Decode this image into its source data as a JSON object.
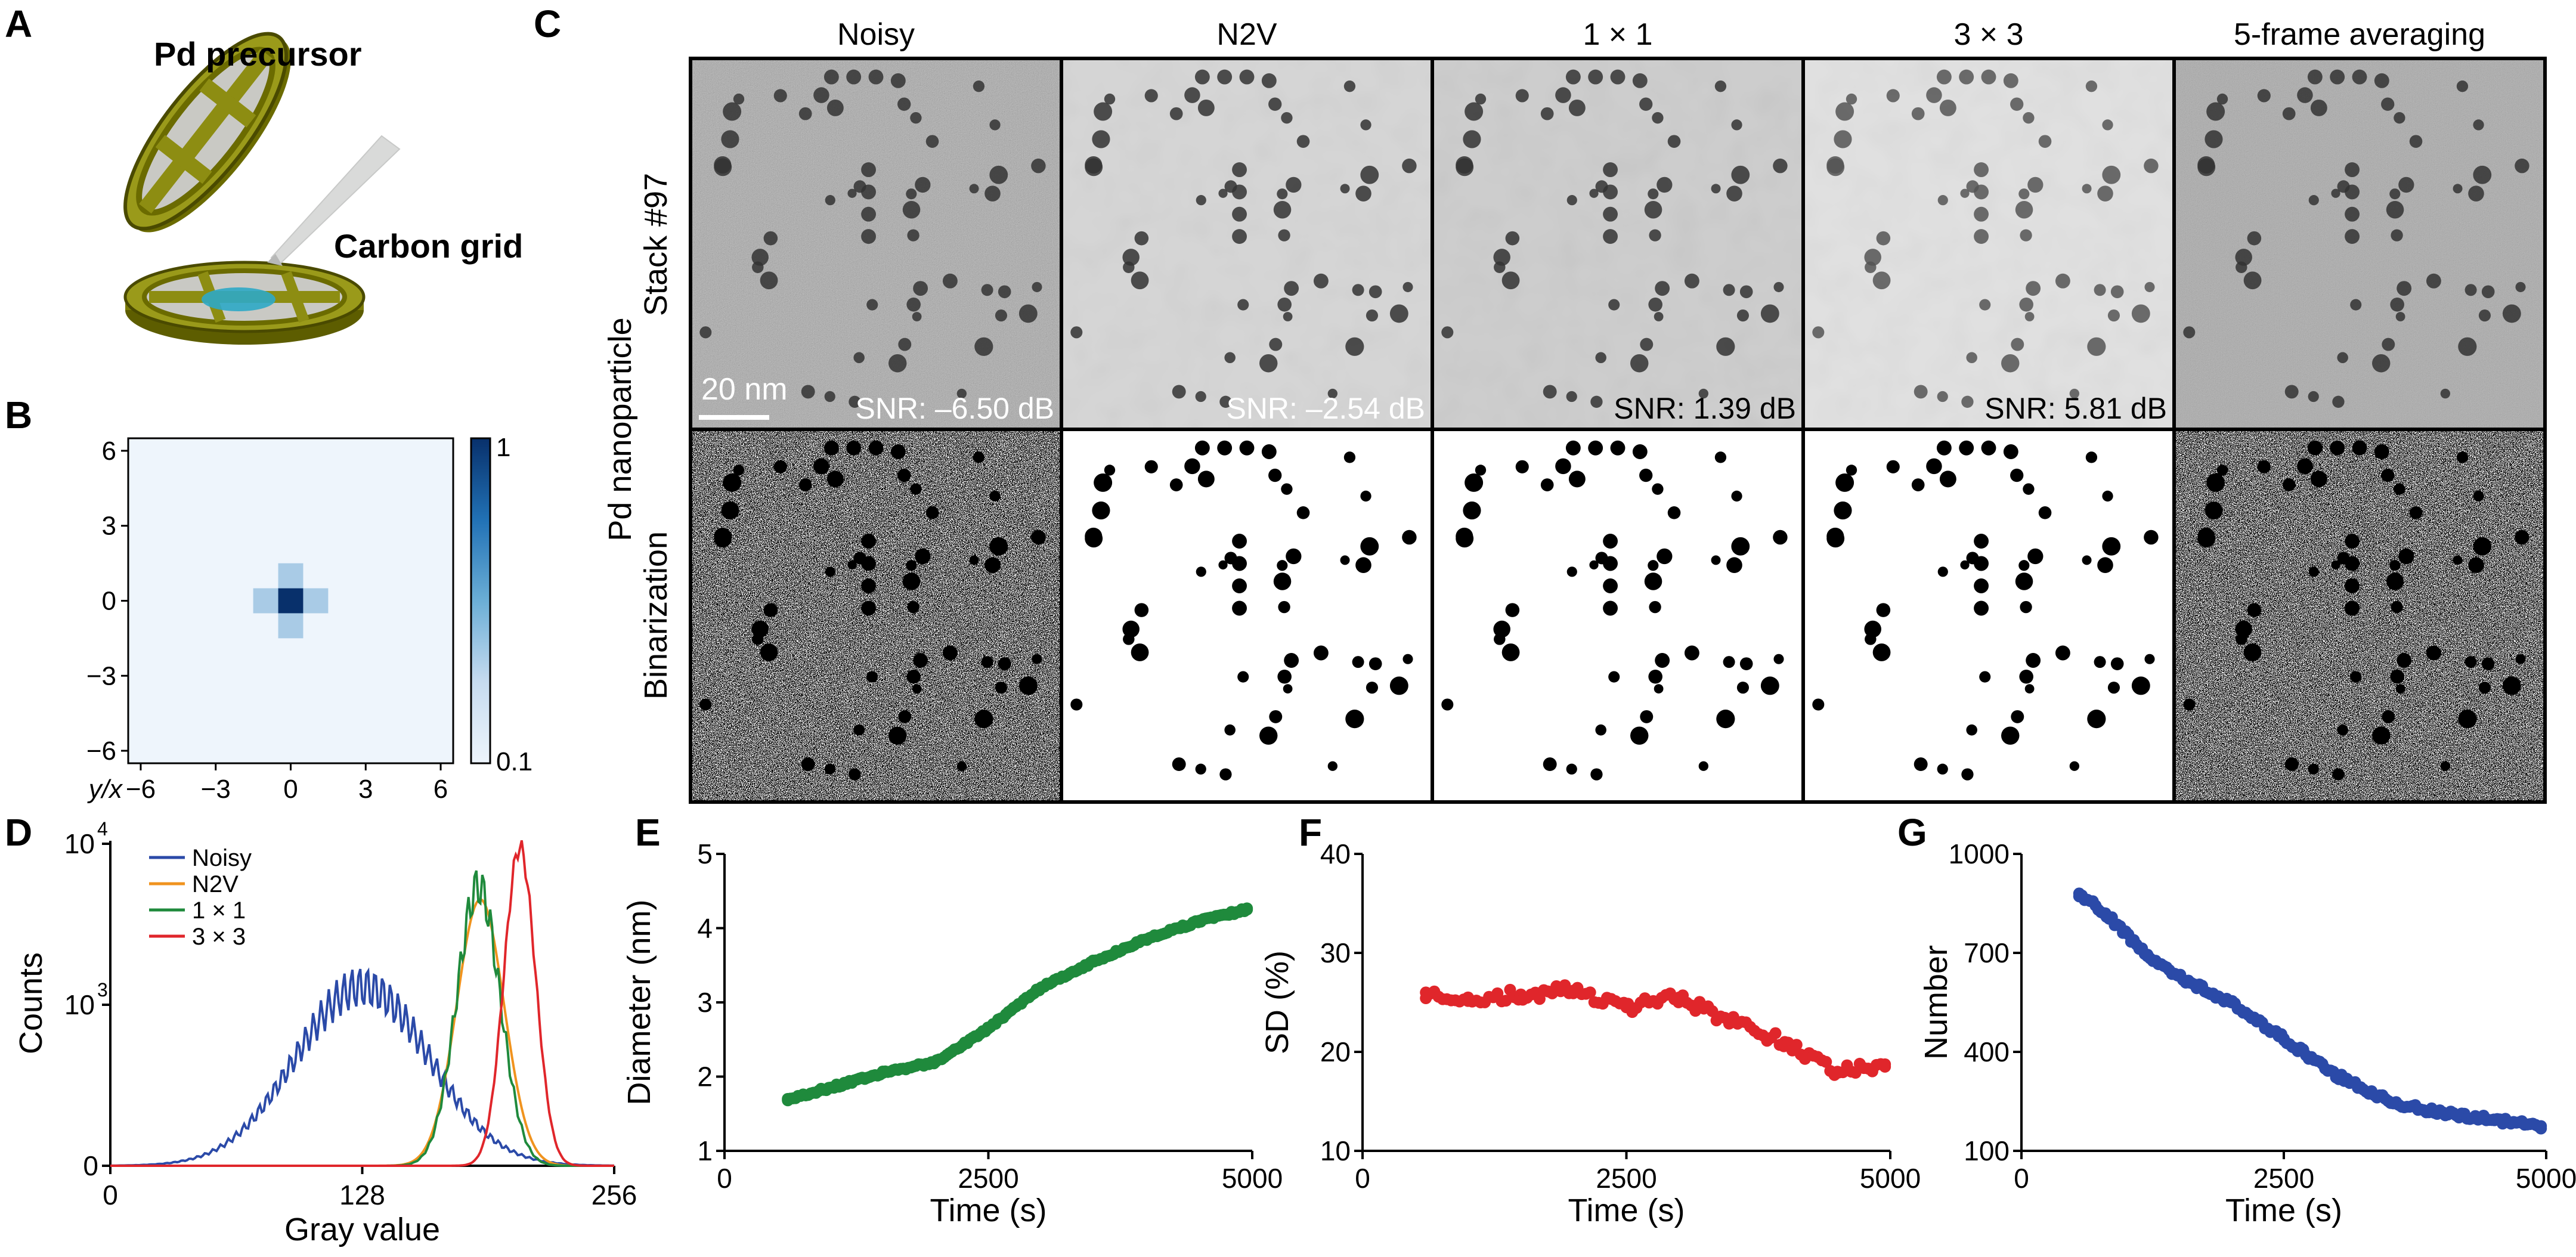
{
  "panels": {
    "A": {
      "label": "A",
      "precursor_label": "Pd precursor",
      "grid_label": "Carbon grid"
    },
    "B": {
      "label": "B"
    },
    "C": {
      "label": "C"
    },
    "D": {
      "label": "D"
    },
    "E": {
      "label": "E"
    },
    "F": {
      "label": "F"
    },
    "G": {
      "label": "G"
    }
  },
  "image_grid": {
    "columns": [
      "Noisy",
      "N2V",
      "1 × 1",
      "3 × 3",
      "5-frame averaging"
    ],
    "snr_labels": [
      "SNR: –6.50 dB",
      "SNR: –2.54 dB",
      "SNR: 1.39 dB",
      "SNR: 5.81 dB",
      ""
    ],
    "row_group_label": "Pd nanoparticle",
    "row_labels": [
      "Stack #97",
      "Binarization"
    ],
    "scale_bar_label": "20 nm"
  },
  "chart_data": [
    {
      "id": "B",
      "type": "heatmap",
      "xlabel": "y/x",
      "xticks": [
        -6,
        -3,
        0,
        3,
        6
      ],
      "yticks": [
        6,
        3,
        0,
        -3,
        -6
      ],
      "xlim": [
        -6.5,
        6.5
      ],
      "ylim": [
        -6.5,
        6.5
      ],
      "colorbar": {
        "max_label": "1",
        "min_label": "0.1",
        "colors": [
          "#eef5fc",
          "#c6dbef",
          "#6baed6",
          "#2171b5",
          "#08306b"
        ]
      },
      "cells": [
        {
          "x": 0,
          "y": 0,
          "value": 1.0
        },
        {
          "x": -1,
          "y": 0,
          "value": 0.3
        },
        {
          "x": 1,
          "y": 0,
          "value": 0.3
        },
        {
          "x": 0,
          "y": 1,
          "value": 0.3
        },
        {
          "x": 0,
          "y": -1,
          "value": 0.3
        }
      ],
      "background_value": 0.1
    },
    {
      "id": "D",
      "type": "line",
      "xlabel": "Gray value",
      "ylabel": "Counts",
      "xlim": [
        0,
        256
      ],
      "xticks": [
        "0",
        "128",
        "256"
      ],
      "yticks": [
        "0",
        "10",
        "10"
      ],
      "ytick_exponents": [
        "",
        "3",
        "4"
      ],
      "series": [
        {
          "name": "Noisy",
          "color": "#2b4aa8",
          "peak": 128,
          "width": 34,
          "height": 0.55,
          "ripple": 0.12
        },
        {
          "name": "N2V",
          "color": "#f0931e",
          "peak": 188,
          "width": 12,
          "height": 0.82,
          "ripple": 0.0
        },
        {
          "name": "1 × 1",
          "color": "#1f8a3c",
          "peak": 187,
          "width": 11,
          "height": 0.86,
          "ripple": 0.08
        },
        {
          "name": "3 × 3",
          "color": "#e0262b",
          "peak": 208,
          "width": 8,
          "height": 0.98,
          "ripple": 0.03
        }
      ]
    },
    {
      "id": "E",
      "type": "scatter",
      "xlabel": "Time (s)",
      "ylabel": "Diameter (nm)",
      "xlim": [
        0,
        5000
      ],
      "ylim": [
        1,
        5
      ],
      "xticks": [
        0,
        2500,
        5000
      ],
      "yticks": [
        1,
        2,
        3,
        4,
        5
      ],
      "color": "#1f8a3c",
      "x": [
        600,
        1000,
        1500,
        2000,
        2500,
        3000,
        3500,
        4000,
        4500,
        4950
      ],
      "y": [
        1.7,
        1.85,
        2.05,
        2.2,
        2.65,
        3.2,
        3.55,
        3.85,
        4.1,
        4.25
      ]
    },
    {
      "id": "F",
      "type": "scatter",
      "xlabel": "Time (s)",
      "ylabel": "SD (%)",
      "xlim": [
        0,
        5000
      ],
      "ylim": [
        10,
        40
      ],
      "xticks": [
        0,
        2500,
        5000
      ],
      "yticks": [
        10,
        20,
        30,
        40
      ],
      "color": "#e0262b",
      "x": [
        600,
        1000,
        1500,
        2000,
        2500,
        3000,
        3500,
        4000,
        4500,
        4950
      ],
      "y": [
        26,
        25.5,
        25.8,
        26.2,
        24.5,
        25.5,
        23,
        21,
        18,
        18.5
      ]
    },
    {
      "id": "G",
      "type": "scatter",
      "xlabel": "Time (s)",
      "ylabel": "Number",
      "xlim": [
        0,
        5000
      ],
      "ylim": [
        100,
        1000
      ],
      "xticks": [
        0,
        2500,
        5000
      ],
      "yticks": [
        100,
        400,
        700,
        1000
      ],
      "color": "#2b4aa8",
      "x": [
        550,
        800,
        1200,
        1600,
        2000,
        2500,
        3000,
        3500,
        4000,
        4500,
        4950
      ],
      "y": [
        880,
        820,
        690,
        610,
        550,
        440,
        330,
        250,
        215,
        195,
        175
      ]
    }
  ]
}
